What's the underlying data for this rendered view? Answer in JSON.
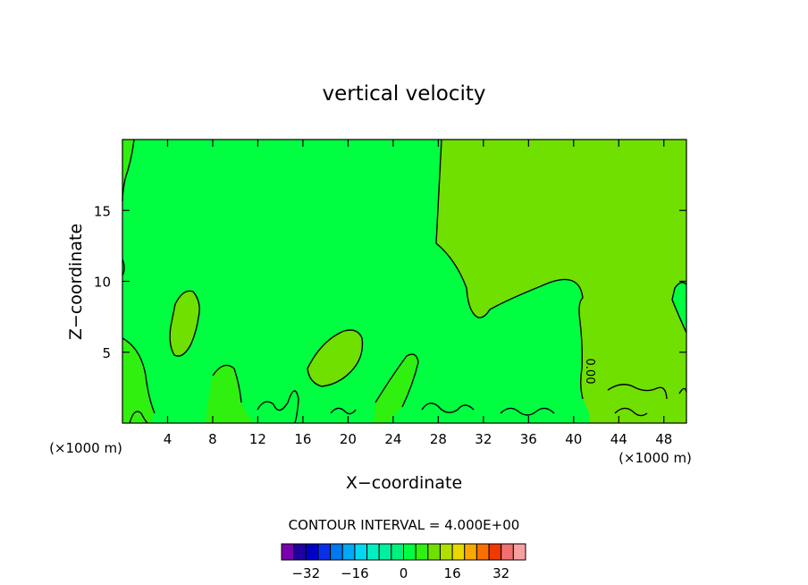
{
  "chart_data": {
    "type": "heatmap",
    "title": "vertical velocity",
    "xlabel": "X−coordinate",
    "ylabel": "Z−coordinate",
    "xlim": [
      0,
      50
    ],
    "ylim": [
      0,
      20
    ],
    "x_ticks": [
      4,
      8,
      12,
      16,
      20,
      24,
      28,
      32,
      36,
      40,
      44,
      48
    ],
    "y_ticks": [
      5,
      10,
      15
    ],
    "x_units": "(×1000 m)",
    "y_units": "(×1000 m)",
    "contour_label": "0.00",
    "contour_interval_text": "CONTOUR INTERVAL = 4.000E+00",
    "colorbar": {
      "levels": [
        -36,
        -32,
        -28,
        -24,
        -20,
        -16,
        -12,
        -8,
        -4,
        0,
        4,
        8,
        12,
        16,
        20,
        24,
        28,
        32,
        36
      ],
      "tick_values": [
        -32,
        -16,
        0,
        16,
        32
      ],
      "tick_labels": [
        "−32",
        "−16",
        "0",
        "16",
        "32"
      ],
      "colors": [
        "#7a00b0",
        "#2000a0",
        "#0000c8",
        "#0a2fe8",
        "#0078f0",
        "#00a8f8",
        "#00d8f0",
        "#00f0c0",
        "#00f0a0",
        "#00f080",
        "#00ff40",
        "#30f010",
        "#70e000",
        "#b0e000",
        "#e8d800",
        "#f8a800",
        "#f87000",
        "#f03800",
        "#f07070",
        "#f8a0a0"
      ]
    },
    "field_colors": {
      "near_zero": "#00ff40",
      "weak_positive": "#30f010",
      "positive": "#70e000"
    }
  }
}
